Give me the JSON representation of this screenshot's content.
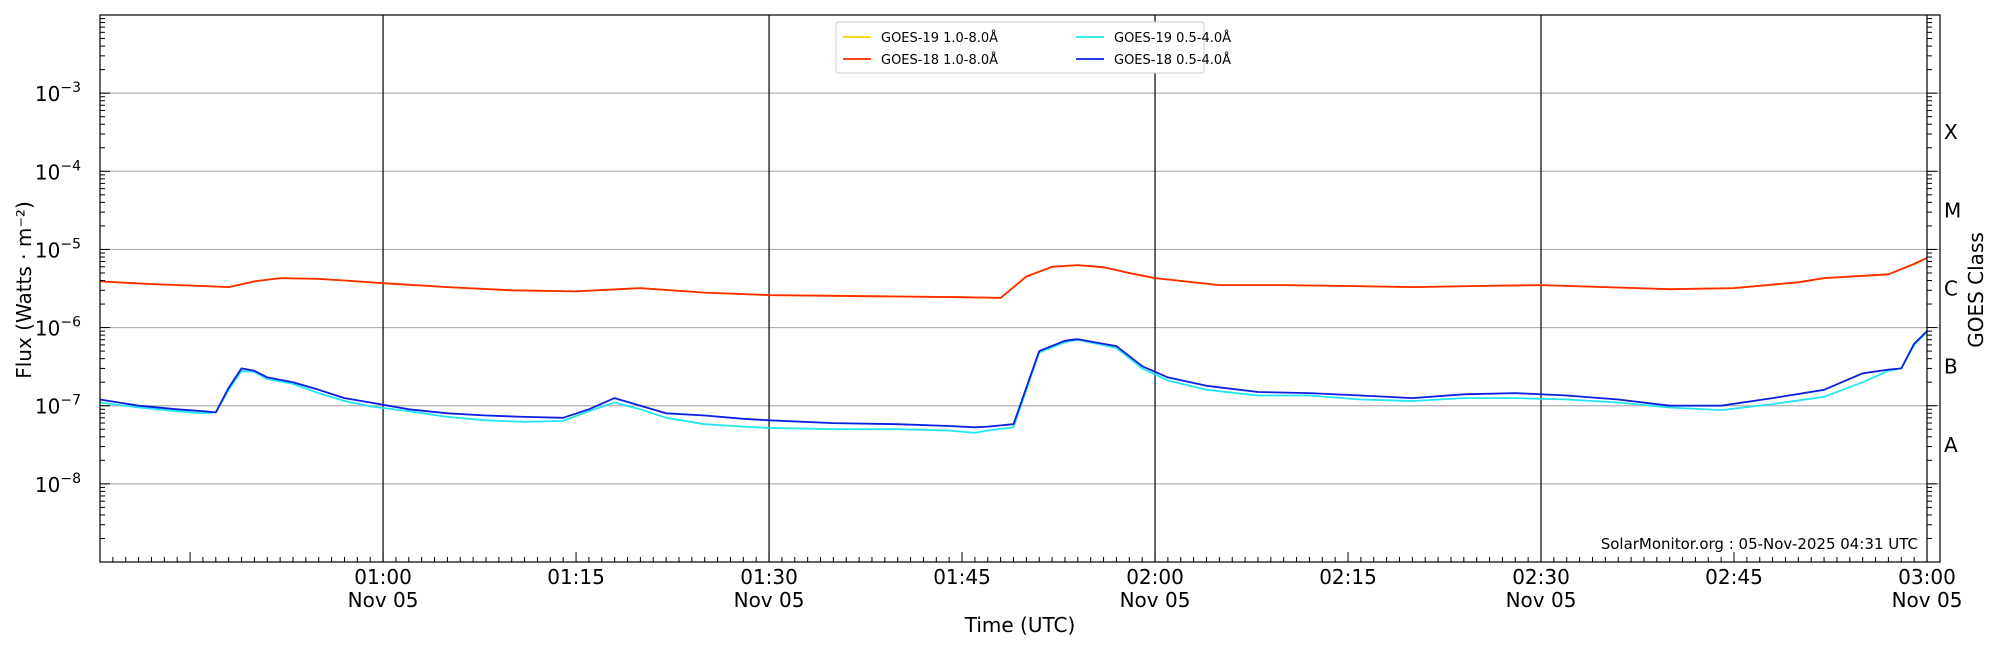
{
  "chart_data": {
    "type": "line",
    "xlabel": "Time (UTC)",
    "ylabel": "Flux (Watts · m⁻²)",
    "ylabel_right": "GOES Class",
    "y_scale": "log",
    "ylim": [
      1e-09,
      0.01
    ],
    "xlim": [
      "00:38",
      "03:00"
    ],
    "grid": true,
    "legend_position": "top-center",
    "annotation": "SolarMonitor.org : 05-Nov-2025 04:31 UTC",
    "x_ticks": [
      {
        "time": "01:00",
        "label": "01:00",
        "label2": "Nov 05"
      },
      {
        "time": "01:15",
        "label": "01:15",
        "label2": ""
      },
      {
        "time": "01:30",
        "label": "01:30",
        "label2": "Nov 05"
      },
      {
        "time": "01:45",
        "label": "01:45",
        "label2": ""
      },
      {
        "time": "02:00",
        "label": "02:00",
        "label2": "Nov 05"
      },
      {
        "time": "02:15",
        "label": "02:15",
        "label2": ""
      },
      {
        "time": "02:30",
        "label": "02:30",
        "label2": "Nov 05"
      },
      {
        "time": "02:45",
        "label": "02:45",
        "label2": ""
      },
      {
        "time": "03:00",
        "label": "03:00",
        "label2": "Nov 05"
      }
    ],
    "y_ticks": [
      {
        "exp": -8,
        "label": "10",
        "sup": "−8"
      },
      {
        "exp": -7,
        "label": "10",
        "sup": "−7"
      },
      {
        "exp": -6,
        "label": "10",
        "sup": "−6"
      },
      {
        "exp": -5,
        "label": "10",
        "sup": "−5"
      },
      {
        "exp": -4,
        "label": "10",
        "sup": "−4"
      },
      {
        "exp": -3,
        "label": "10",
        "sup": "−3"
      }
    ],
    "goes_classes": [
      {
        "label": "A",
        "exp": -7.5
      },
      {
        "label": "B",
        "exp": -6.5
      },
      {
        "label": "C",
        "exp": -5.5
      },
      {
        "label": "M",
        "exp": -4.5
      },
      {
        "label": "X",
        "exp": -3.5
      }
    ],
    "series": [
      {
        "name": "GOES-19 1.0-8.0Å",
        "color": "#ffd700",
        "x": [
          "00:38",
          "00:42",
          "00:46",
          "00:48",
          "00:50",
          "00:52",
          "00:55",
          "00:57",
          "01:00",
          "01:05",
          "01:10",
          "01:15",
          "01:20",
          "01:25",
          "01:30",
          "01:35",
          "01:40",
          "01:45",
          "01:48",
          "01:50",
          "01:52",
          "01:54",
          "01:56",
          "01:58",
          "02:00",
          "02:05",
          "02:10",
          "02:15",
          "02:20",
          "02:25",
          "02:30",
          "02:35",
          "02:40",
          "02:45",
          "02:50",
          "02:52",
          "02:55",
          "02:57",
          "02:59",
          "03:00"
        ],
        "y": [
          3.9e-06,
          3.6e-06,
          3.4e-06,
          3.3e-06,
          3.9e-06,
          4.3e-06,
          4.2e-06,
          4e-06,
          3.7e-06,
          3.3e-06,
          3e-06,
          2.9e-06,
          3.2e-06,
          2.8e-06,
          2.6e-06,
          2.55e-06,
          2.5e-06,
          2.45e-06,
          2.4e-06,
          4.5e-06,
          6e-06,
          6.3e-06,
          5.9e-06,
          5e-06,
          4.3e-06,
          3.5e-06,
          3.5e-06,
          3.4e-06,
          3.3e-06,
          3.4e-06,
          3.5e-06,
          3.3e-06,
          3.1e-06,
          3.2e-06,
          3.8e-06,
          4.3e-06,
          4.6e-06,
          4.8e-06,
          6.5e-06,
          7.8e-06
        ]
      },
      {
        "name": "GOES-18 1.0-8.0Å",
        "color": "#ff2a00",
        "x": [
          "00:38",
          "00:42",
          "00:46",
          "00:48",
          "00:50",
          "00:52",
          "00:55",
          "00:57",
          "01:00",
          "01:05",
          "01:10",
          "01:15",
          "01:20",
          "01:25",
          "01:30",
          "01:35",
          "01:40",
          "01:45",
          "01:48",
          "01:50",
          "01:52",
          "01:54",
          "01:56",
          "01:58",
          "02:00",
          "02:05",
          "02:10",
          "02:15",
          "02:20",
          "02:25",
          "02:30",
          "02:35",
          "02:40",
          "02:45",
          "02:50",
          "02:52",
          "02:55",
          "02:57",
          "02:59",
          "03:00"
        ],
        "y": [
          3.9e-06,
          3.6e-06,
          3.4e-06,
          3.3e-06,
          3.9e-06,
          4.3e-06,
          4.2e-06,
          4e-06,
          3.7e-06,
          3.3e-06,
          3e-06,
          2.9e-06,
          3.2e-06,
          2.8e-06,
          2.6e-06,
          2.55e-06,
          2.5e-06,
          2.45e-06,
          2.4e-06,
          4.5e-06,
          6e-06,
          6.3e-06,
          5.9e-06,
          5e-06,
          4.3e-06,
          3.5e-06,
          3.5e-06,
          3.4e-06,
          3.3e-06,
          3.4e-06,
          3.5e-06,
          3.3e-06,
          3.1e-06,
          3.2e-06,
          3.8e-06,
          4.3e-06,
          4.6e-06,
          4.8e-06,
          6.5e-06,
          7.8e-06
        ]
      },
      {
        "name": "GOES-19 0.5-4.0Å",
        "color": "#22e6f0",
        "x": [
          "00:38",
          "00:41",
          "00:44",
          "00:46",
          "00:47",
          "00:48",
          "00:49",
          "00:50",
          "00:51",
          "00:53",
          "00:55",
          "00:57",
          "00:59",
          "01:02",
          "01:05",
          "01:08",
          "01:11",
          "01:14",
          "01:16",
          "01:18",
          "01:20",
          "01:22",
          "01:25",
          "01:28",
          "01:30",
          "01:35",
          "01:40",
          "01:44",
          "01:46",
          "01:47",
          "01:49",
          "01:51",
          "01:53",
          "01:54",
          "01:57",
          "01:59",
          "02:01",
          "02:04",
          "02:08",
          "02:12",
          "02:16",
          "02:20",
          "02:24",
          "02:28",
          "02:32",
          "02:36",
          "02:40",
          "02:44",
          "02:48",
          "02:52",
          "02:55",
          "02:57",
          "02:58",
          "02:59",
          "03:00"
        ],
        "y": [
          1.1e-07,
          9.5e-08,
          8.5e-08,
          8e-08,
          8.2e-08,
          1.6e-07,
          2.8e-07,
          2.7e-07,
          2.2e-07,
          1.9e-07,
          1.45e-07,
          1.15e-07,
          9.8e-08,
          8.5e-08,
          7.2e-08,
          6.5e-08,
          6.2e-08,
          6.4e-08,
          8.5e-08,
          1.1e-07,
          9e-08,
          7e-08,
          5.8e-08,
          5.4e-08,
          5.2e-08,
          5e-08,
          5e-08,
          4.8e-08,
          4.5e-08,
          4.8e-08,
          5.3e-08,
          4.8e-07,
          6.5e-07,
          7e-07,
          5.5e-07,
          3e-07,
          2.1e-07,
          1.6e-07,
          1.35e-07,
          1.35e-07,
          1.2e-07,
          1.15e-07,
          1.25e-07,
          1.25e-07,
          1.2e-07,
          1.1e-07,
          9.5e-08,
          8.8e-08,
          1.05e-07,
          1.3e-07,
          2e-07,
          2.8e-07,
          3e-07,
          6e-07,
          8.8e-07
        ]
      },
      {
        "name": "GOES-18 0.5-4.0Å",
        "color": "#0a1fe0",
        "x": [
          "00:38",
          "00:41",
          "00:44",
          "00:46",
          "00:47",
          "00:48",
          "00:49",
          "00:50",
          "00:51",
          "00:53",
          "00:55",
          "00:57",
          "00:59",
          "01:02",
          "01:05",
          "01:08",
          "01:11",
          "01:14",
          "01:16",
          "01:18",
          "01:20",
          "01:22",
          "01:25",
          "01:28",
          "01:30",
          "01:35",
          "01:40",
          "01:44",
          "01:46",
          "01:47",
          "01:49",
          "01:51",
          "01:53",
          "01:54",
          "01:57",
          "01:59",
          "02:01",
          "02:04",
          "02:08",
          "02:12",
          "02:16",
          "02:20",
          "02:24",
          "02:28",
          "02:32",
          "02:36",
          "02:40",
          "02:44",
          "02:48",
          "02:52",
          "02:55",
          "02:57",
          "02:58",
          "02:59",
          "03:00"
        ],
        "y": [
          1.2e-07,
          1e-07,
          9e-08,
          8.5e-08,
          8.2e-08,
          1.7e-07,
          3e-07,
          2.8e-07,
          2.3e-07,
          2e-07,
          1.6e-07,
          1.25e-07,
          1.1e-07,
          9e-08,
          8e-08,
          7.5e-08,
          7.2e-08,
          7e-08,
          9e-08,
          1.25e-07,
          1e-07,
          8e-08,
          7.5e-08,
          6.8e-08,
          6.5e-08,
          6e-08,
          5.8e-08,
          5.5e-08,
          5.3e-08,
          5.4e-08,
          5.8e-08,
          5e-07,
          6.8e-07,
          7.1e-07,
          5.8e-07,
          3.2e-07,
          2.3e-07,
          1.8e-07,
          1.5e-07,
          1.45e-07,
          1.35e-07,
          1.25e-07,
          1.4e-07,
          1.45e-07,
          1.35e-07,
          1.2e-07,
          1e-07,
          1e-07,
          1.25e-07,
          1.6e-07,
          2.6e-07,
          2.9e-07,
          3e-07,
          6.2e-07,
          9e-07
        ]
      }
    ]
  }
}
